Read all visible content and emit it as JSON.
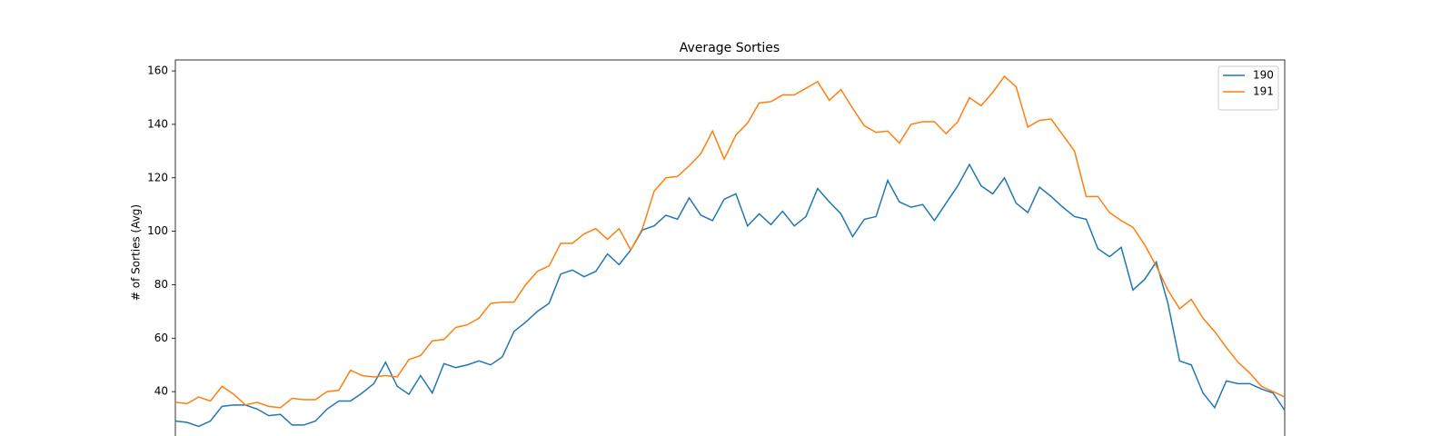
{
  "chart_data": {
    "type": "line",
    "title": "Average Sorties",
    "ylabel": "# of Sorties (Avg)",
    "series": [
      {
        "name": "190",
        "color": "#1f77b4",
        "values": [
          29,
          28.5,
          27,
          29,
          34.5,
          35,
          35,
          33.5,
          31,
          31.5,
          27.5,
          27.5,
          29,
          33.5,
          36.5,
          36.5,
          39.5,
          43,
          51,
          42,
          39,
          46,
          39.5,
          50.5,
          49,
          50,
          51.5,
          50,
          53,
          62.5,
          66,
          70,
          73,
          84,
          85.5,
          83,
          85,
          91.5,
          87.5,
          93,
          100.5,
          102,
          106,
          104.5,
          112.5,
          106,
          104,
          112,
          114,
          102,
          106.5,
          102.5,
          107.5,
          102,
          105.5,
          116,
          111,
          106.5,
          98,
          104.5,
          105.5,
          119,
          111,
          109,
          110,
          104,
          110.5,
          117,
          125,
          117,
          114,
          120,
          110.5,
          107,
          116.5,
          113,
          109,
          105.5,
          104.5,
          93.5,
          90.5,
          94,
          78,
          82,
          88.5,
          73,
          51.5,
          50,
          39.5,
          34,
          44,
          43,
          43,
          41,
          39.5,
          33
        ]
      },
      {
        "name": "191",
        "color": "#ff7f0e",
        "values": [
          36,
          35.5,
          38,
          36.5,
          42,
          39,
          35,
          36,
          34.5,
          34,
          37.5,
          37,
          37,
          40,
          40.5,
          48,
          46,
          45.5,
          46,
          45.5,
          52,
          53.5,
          59,
          59.5,
          64,
          65,
          67.5,
          73,
          73.5,
          73.5,
          80,
          85,
          87,
          95.5,
          95.5,
          99,
          101,
          97,
          101,
          93,
          101,
          115,
          120,
          120.5,
          124.5,
          129,
          137.5,
          127,
          136,
          140.5,
          148,
          148.5,
          151,
          151,
          153.5,
          156,
          149,
          153,
          146,
          139.5,
          137,
          137.5,
          133,
          140,
          141,
          141,
          136.5,
          141,
          150,
          147,
          152,
          158,
          154,
          139,
          141.5,
          142,
          136,
          130,
          113,
          113,
          107,
          104,
          101.5,
          95,
          87,
          78,
          71,
          74.5,
          67.5,
          62.5,
          56.5,
          51,
          47,
          42,
          40,
          38
        ]
      }
    ],
    "ylim": [
      20,
      164.1
    ],
    "yticks": [
      40,
      60,
      80,
      100,
      120,
      140,
      160
    ],
    "grid": false,
    "legend": "upper right"
  }
}
